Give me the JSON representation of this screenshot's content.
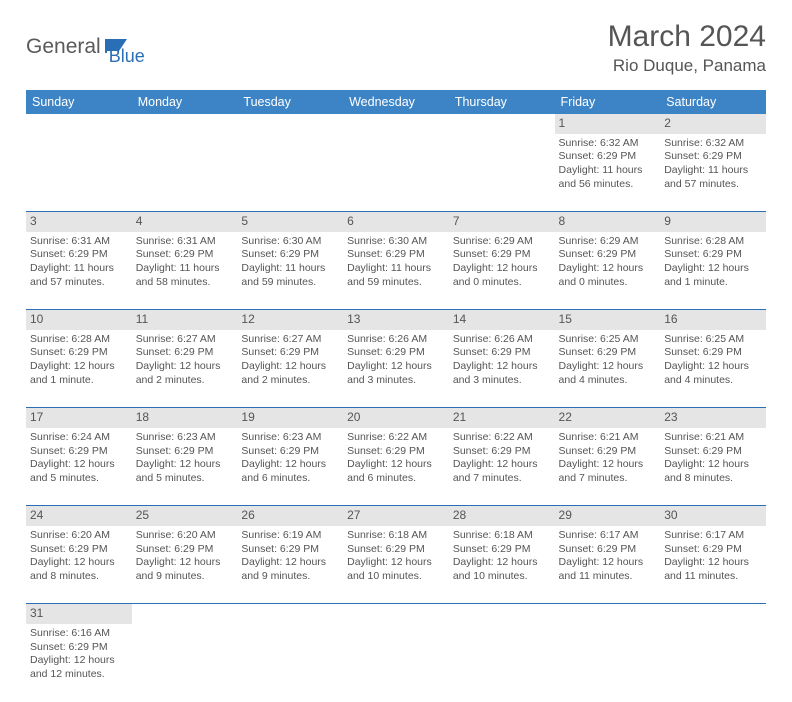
{
  "logo": {
    "part1": "General",
    "part2": "Blue"
  },
  "title": "March 2024",
  "location": "Rio Duque, Panama",
  "colors": {
    "header_bg": "#3d84c6",
    "accent": "#2a6fb5",
    "daynum_bg": "#e5e5e5",
    "text": "#555555"
  },
  "weekdays": [
    "Sunday",
    "Monday",
    "Tuesday",
    "Wednesday",
    "Thursday",
    "Friday",
    "Saturday"
  ],
  "weeks": [
    {
      "nums": [
        "",
        "",
        "",
        "",
        "",
        "1",
        "2"
      ],
      "cells": [
        null,
        null,
        null,
        null,
        null,
        {
          "sr": "Sunrise: 6:32 AM",
          "ss": "Sunset: 6:29 PM",
          "dl": "Daylight: 11 hours and 56 minutes."
        },
        {
          "sr": "Sunrise: 6:32 AM",
          "ss": "Sunset: 6:29 PM",
          "dl": "Daylight: 11 hours and 57 minutes."
        }
      ]
    },
    {
      "nums": [
        "3",
        "4",
        "5",
        "6",
        "7",
        "8",
        "9"
      ],
      "cells": [
        {
          "sr": "Sunrise: 6:31 AM",
          "ss": "Sunset: 6:29 PM",
          "dl": "Daylight: 11 hours and 57 minutes."
        },
        {
          "sr": "Sunrise: 6:31 AM",
          "ss": "Sunset: 6:29 PM",
          "dl": "Daylight: 11 hours and 58 minutes."
        },
        {
          "sr": "Sunrise: 6:30 AM",
          "ss": "Sunset: 6:29 PM",
          "dl": "Daylight: 11 hours and 59 minutes."
        },
        {
          "sr": "Sunrise: 6:30 AM",
          "ss": "Sunset: 6:29 PM",
          "dl": "Daylight: 11 hours and 59 minutes."
        },
        {
          "sr": "Sunrise: 6:29 AM",
          "ss": "Sunset: 6:29 PM",
          "dl": "Daylight: 12 hours and 0 minutes."
        },
        {
          "sr": "Sunrise: 6:29 AM",
          "ss": "Sunset: 6:29 PM",
          "dl": "Daylight: 12 hours and 0 minutes."
        },
        {
          "sr": "Sunrise: 6:28 AM",
          "ss": "Sunset: 6:29 PM",
          "dl": "Daylight: 12 hours and 1 minute."
        }
      ]
    },
    {
      "nums": [
        "10",
        "11",
        "12",
        "13",
        "14",
        "15",
        "16"
      ],
      "cells": [
        {
          "sr": "Sunrise: 6:28 AM",
          "ss": "Sunset: 6:29 PM",
          "dl": "Daylight: 12 hours and 1 minute."
        },
        {
          "sr": "Sunrise: 6:27 AM",
          "ss": "Sunset: 6:29 PM",
          "dl": "Daylight: 12 hours and 2 minutes."
        },
        {
          "sr": "Sunrise: 6:27 AM",
          "ss": "Sunset: 6:29 PM",
          "dl": "Daylight: 12 hours and 2 minutes."
        },
        {
          "sr": "Sunrise: 6:26 AM",
          "ss": "Sunset: 6:29 PM",
          "dl": "Daylight: 12 hours and 3 minutes."
        },
        {
          "sr": "Sunrise: 6:26 AM",
          "ss": "Sunset: 6:29 PM",
          "dl": "Daylight: 12 hours and 3 minutes."
        },
        {
          "sr": "Sunrise: 6:25 AM",
          "ss": "Sunset: 6:29 PM",
          "dl": "Daylight: 12 hours and 4 minutes."
        },
        {
          "sr": "Sunrise: 6:25 AM",
          "ss": "Sunset: 6:29 PM",
          "dl": "Daylight: 12 hours and 4 minutes."
        }
      ]
    },
    {
      "nums": [
        "17",
        "18",
        "19",
        "20",
        "21",
        "22",
        "23"
      ],
      "cells": [
        {
          "sr": "Sunrise: 6:24 AM",
          "ss": "Sunset: 6:29 PM",
          "dl": "Daylight: 12 hours and 5 minutes."
        },
        {
          "sr": "Sunrise: 6:23 AM",
          "ss": "Sunset: 6:29 PM",
          "dl": "Daylight: 12 hours and 5 minutes."
        },
        {
          "sr": "Sunrise: 6:23 AM",
          "ss": "Sunset: 6:29 PM",
          "dl": "Daylight: 12 hours and 6 minutes."
        },
        {
          "sr": "Sunrise: 6:22 AM",
          "ss": "Sunset: 6:29 PM",
          "dl": "Daylight: 12 hours and 6 minutes."
        },
        {
          "sr": "Sunrise: 6:22 AM",
          "ss": "Sunset: 6:29 PM",
          "dl": "Daylight: 12 hours and 7 minutes."
        },
        {
          "sr": "Sunrise: 6:21 AM",
          "ss": "Sunset: 6:29 PM",
          "dl": "Daylight: 12 hours and 7 minutes."
        },
        {
          "sr": "Sunrise: 6:21 AM",
          "ss": "Sunset: 6:29 PM",
          "dl": "Daylight: 12 hours and 8 minutes."
        }
      ]
    },
    {
      "nums": [
        "24",
        "25",
        "26",
        "27",
        "28",
        "29",
        "30"
      ],
      "cells": [
        {
          "sr": "Sunrise: 6:20 AM",
          "ss": "Sunset: 6:29 PM",
          "dl": "Daylight: 12 hours and 8 minutes."
        },
        {
          "sr": "Sunrise: 6:20 AM",
          "ss": "Sunset: 6:29 PM",
          "dl": "Daylight: 12 hours and 9 minutes."
        },
        {
          "sr": "Sunrise: 6:19 AM",
          "ss": "Sunset: 6:29 PM",
          "dl": "Daylight: 12 hours and 9 minutes."
        },
        {
          "sr": "Sunrise: 6:18 AM",
          "ss": "Sunset: 6:29 PM",
          "dl": "Daylight: 12 hours and 10 minutes."
        },
        {
          "sr": "Sunrise: 6:18 AM",
          "ss": "Sunset: 6:29 PM",
          "dl": "Daylight: 12 hours and 10 minutes."
        },
        {
          "sr": "Sunrise: 6:17 AM",
          "ss": "Sunset: 6:29 PM",
          "dl": "Daylight: 12 hours and 11 minutes."
        },
        {
          "sr": "Sunrise: 6:17 AM",
          "ss": "Sunset: 6:29 PM",
          "dl": "Daylight: 12 hours and 11 minutes."
        }
      ]
    },
    {
      "nums": [
        "31",
        "",
        "",
        "",
        "",
        "",
        ""
      ],
      "cells": [
        {
          "sr": "Sunrise: 6:16 AM",
          "ss": "Sunset: 6:29 PM",
          "dl": "Daylight: 12 hours and 12 minutes."
        },
        null,
        null,
        null,
        null,
        null,
        null
      ]
    }
  ]
}
